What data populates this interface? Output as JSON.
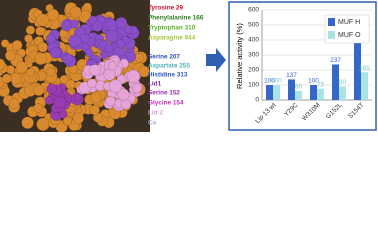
{
  "image_labels": [
    {
      "text": "Tyrosine  29",
      "color": "#c8102e"
    },
    {
      "text": "Phenylalanine 166",
      "color": "#2e7d1e"
    },
    {
      "text": "Tryptophan 310",
      "color": "#5ab42a"
    },
    {
      "text": "Asparagine 944",
      "color": "#a6c83c"
    },
    {
      "text": "Serine 207",
      "color": "#2a4fb8"
    },
    {
      "text": "Aspartate 255",
      "color": "#4fb0b8"
    },
    {
      "text": "Histidine 313",
      "color": "#2a55c0"
    },
    {
      "text": "Lid1",
      "color": "#7a2a9c"
    },
    {
      "text": "Serine 152",
      "color": "#9a2ab4"
    },
    {
      "text": "Glycine 154",
      "color": "#c42ab8"
    },
    {
      "text": "Lid 2",
      "color": "#e0a0d8"
    },
    {
      "text": "Ca",
      "color": "#b8a8d8"
    }
  ],
  "chart_data": {
    "type": "bar",
    "y_label": "Relative activity (%)",
    "categories": [
      "Lip 13 wt",
      "Y29C",
      "W310M",
      "G152L",
      "S154T"
    ],
    "series": [
      {
        "name": "MUF H",
        "color": "#3567c8",
        "values": [
          100,
          137,
          100,
          237,
          520
        ]
      },
      {
        "name": "MUF O",
        "color": "#a9e3e3",
        "values": [
          100,
          60,
          75,
          90,
          185
        ]
      }
    ],
    "ylim": [
      0,
      600
    ],
    "yticks": [
      0,
      100,
      200,
      300,
      400,
      500,
      600
    ],
    "grid": true,
    "legend": "upper right"
  }
}
